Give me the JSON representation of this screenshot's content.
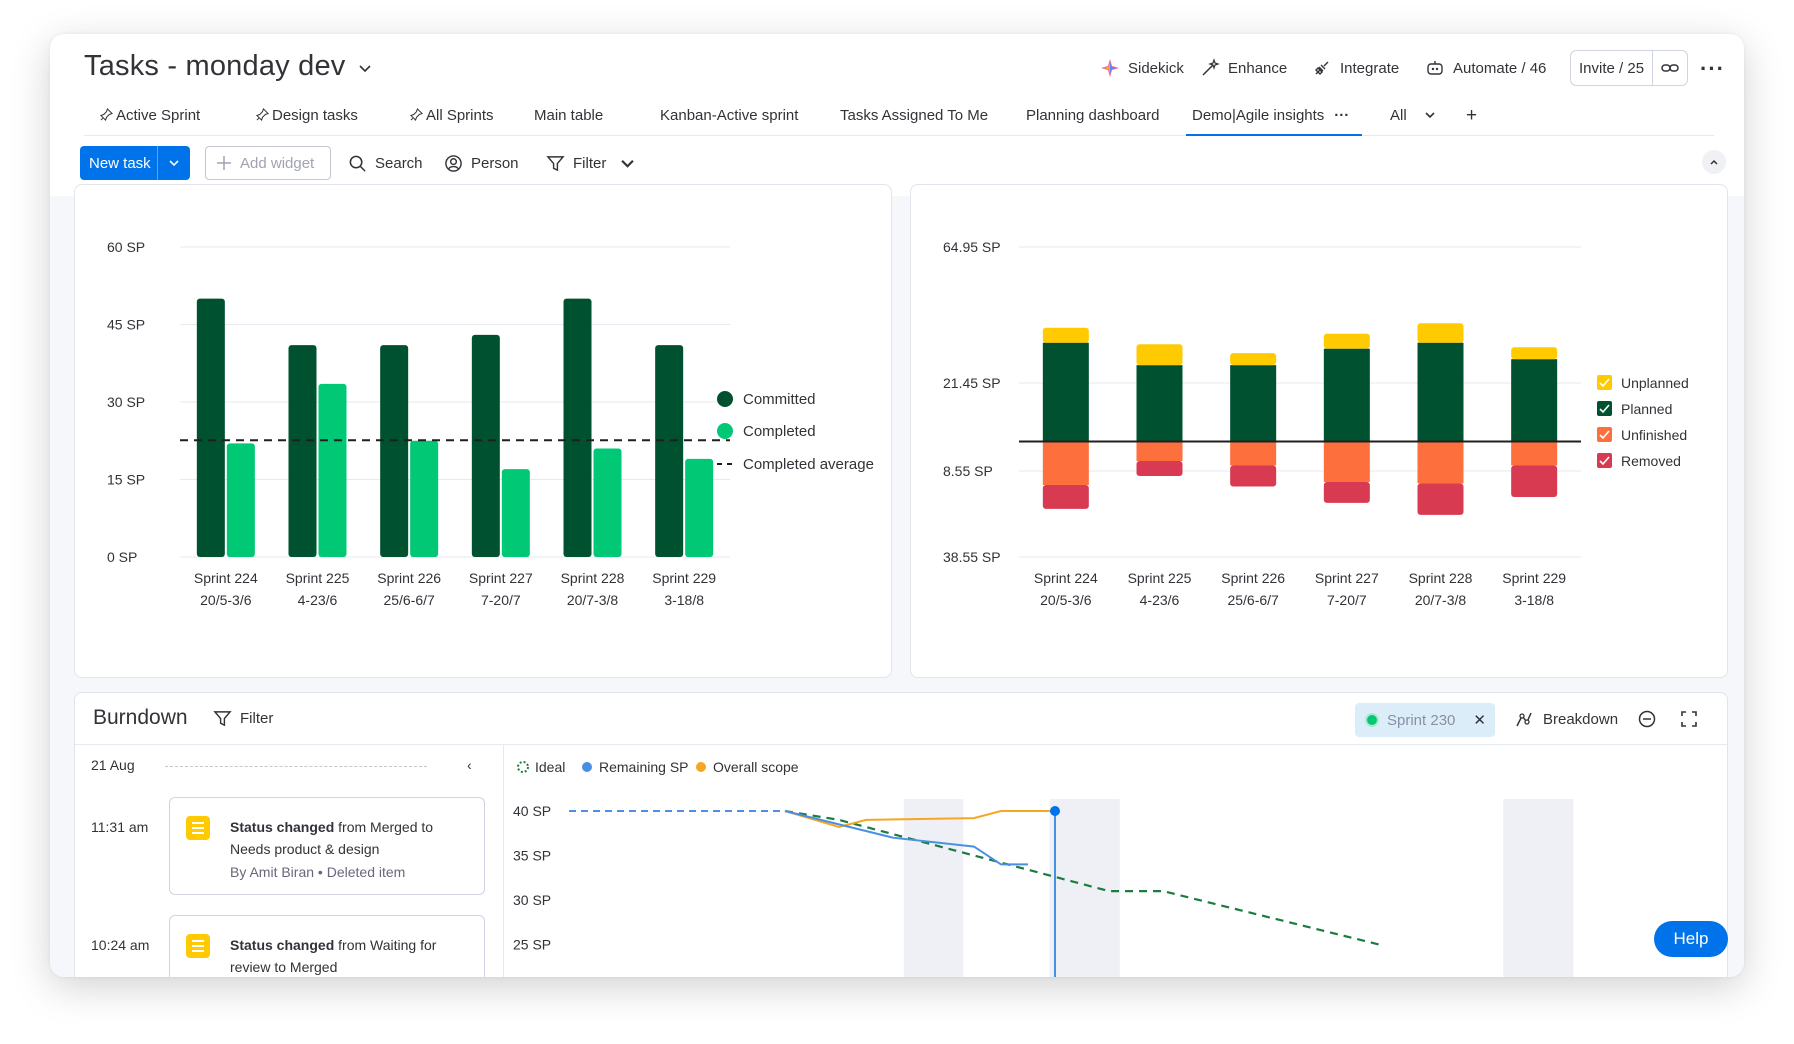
{
  "header": {
    "title": "Tasks - monday dev",
    "actions": {
      "sidekick": "Sidekick",
      "enhance": "Enhance",
      "integrate": "Integrate",
      "automate": "Automate / 46",
      "invite": "Invite / 25"
    }
  },
  "tabs": [
    {
      "label": "Active Sprint",
      "pinned": true
    },
    {
      "label": "Design tasks",
      "pinned": true
    },
    {
      "label": "All Sprints",
      "pinned": true
    },
    {
      "label": "Main table",
      "pinned": false
    },
    {
      "label": "Kanban-Active sprint",
      "pinned": false
    },
    {
      "label": "Tasks Assigned To Me",
      "pinned": false
    },
    {
      "label": "Planning dashboard",
      "pinned": false
    },
    {
      "label": "Demo|Agile insights",
      "pinned": false,
      "active": true
    },
    {
      "label": "All",
      "pinned": false
    }
  ],
  "toolbar": {
    "new_task": "New task",
    "add_widget": "Add widget",
    "search": "Search",
    "person": "Person",
    "filter": "Filter"
  },
  "colors": {
    "accent": "#0073ea",
    "committed": "#00512f",
    "completed": "#00c875",
    "unplanned": "#ffcb00",
    "planned": "#00512f",
    "unfinished": "#fd6f3c",
    "removed": "#d83a52",
    "ideal": "#1b7c3e",
    "remaining": "#4a90e2",
    "scope": "#f6a623"
  },
  "chart_data": [
    {
      "type": "bar",
      "categories": [
        "Sprint 224",
        "Sprint 225",
        "Sprint 226",
        "Sprint 227",
        "Sprint 228",
        "Sprint 229"
      ],
      "category_sublabels": [
        "20/5-3/6",
        "4-23/6",
        "25/6-6/7",
        "7-20/7",
        "20/7-3/8",
        "3-18/8"
      ],
      "series": [
        {
          "name": "Committed",
          "values": [
            50,
            41,
            41,
            43,
            50,
            41
          ]
        },
        {
          "name": "Completed",
          "values": [
            22,
            33.5,
            22.5,
            17,
            21,
            19
          ]
        }
      ],
      "reference_line": {
        "name": "Completed average",
        "value": 22.6
      },
      "y_ticks": [
        "0 SP",
        "15 SP",
        "30 SP",
        "45 SP",
        "60 SP"
      ],
      "ylim": [
        0,
        60
      ],
      "legend_position": "right"
    },
    {
      "type": "bar",
      "stacked": true,
      "categories": [
        "Sprint 224",
        "Sprint 225",
        "Sprint 226",
        "Sprint 227",
        "Sprint 228",
        "Sprint 229"
      ],
      "category_sublabels": [
        "20/5-3/6",
        "4-23/6",
        "25/6-6/7",
        "7-20/7",
        "20/7-3/8",
        "3-18/8"
      ],
      "series": [
        {
          "name": "Unplanned",
          "values": [
            5,
            7,
            4,
            5,
            6.5,
            4
          ]
        },
        {
          "name": "Planned",
          "values": [
            33,
            25.5,
            25.5,
            31,
            33,
            27.5
          ]
        },
        {
          "name": "Unfinished",
          "values": [
            14.5,
            6.5,
            8,
            13.5,
            14,
            8
          ]
        },
        {
          "name": "Removed",
          "values": [
            8,
            5,
            7,
            7,
            10.5,
            10.5
          ]
        }
      ],
      "y_ticks": [
        "64.95 SP",
        "21.45 SP",
        "8.55 SP",
        "38.55 SP"
      ],
      "ylim": [
        -38.55,
        64.95
      ],
      "legend_position": "right"
    },
    {
      "type": "line",
      "title": "Burndown",
      "series": [
        {
          "name": "Ideal",
          "style": "dashed",
          "points": [
            [
              0,
              40
            ],
            [
              4,
              40
            ],
            [
              5,
              39
            ],
            [
              10,
              31
            ],
            [
              11,
              31
            ],
            [
              15,
              25
            ]
          ]
        },
        {
          "name": "Remaining SP",
          "points": [
            [
              0,
              40
            ],
            [
              4,
              40
            ],
            [
              5,
              38.5
            ],
            [
              6,
              37
            ],
            [
              7.5,
              36
            ],
            [
              8,
              34
            ],
            [
              8.5,
              34
            ]
          ]
        },
        {
          "name": "Overall scope",
          "points": [
            [
              4,
              40
            ],
            [
              5,
              38.2
            ],
            [
              5.5,
              39
            ],
            [
              7.5,
              39.2
            ],
            [
              8,
              40
            ],
            [
              9,
              40
            ]
          ]
        }
      ],
      "y_ticks": [
        "40 SP",
        "35 SP",
        "30 SP",
        "25 SP"
      ],
      "legend_position": "top-left"
    }
  ],
  "burndown": {
    "title": "Burndown",
    "filter": "Filter",
    "sprint_chip": "Sprint 230",
    "breakdown": "Breakdown",
    "legend": [
      "Ideal",
      "Remaining SP",
      "Overall scope"
    ],
    "activity": {
      "date": "21 Aug",
      "items": [
        {
          "time": "11:31 am",
          "bold": "Status changed",
          "text": " from Merged to Needs product & design",
          "by": "By Amit Biran",
          "extra": "Deleted item"
        },
        {
          "time": "10:24 am",
          "bold": "Status changed",
          "text": " from Waiting for review to Merged"
        }
      ]
    }
  },
  "help": "Help"
}
